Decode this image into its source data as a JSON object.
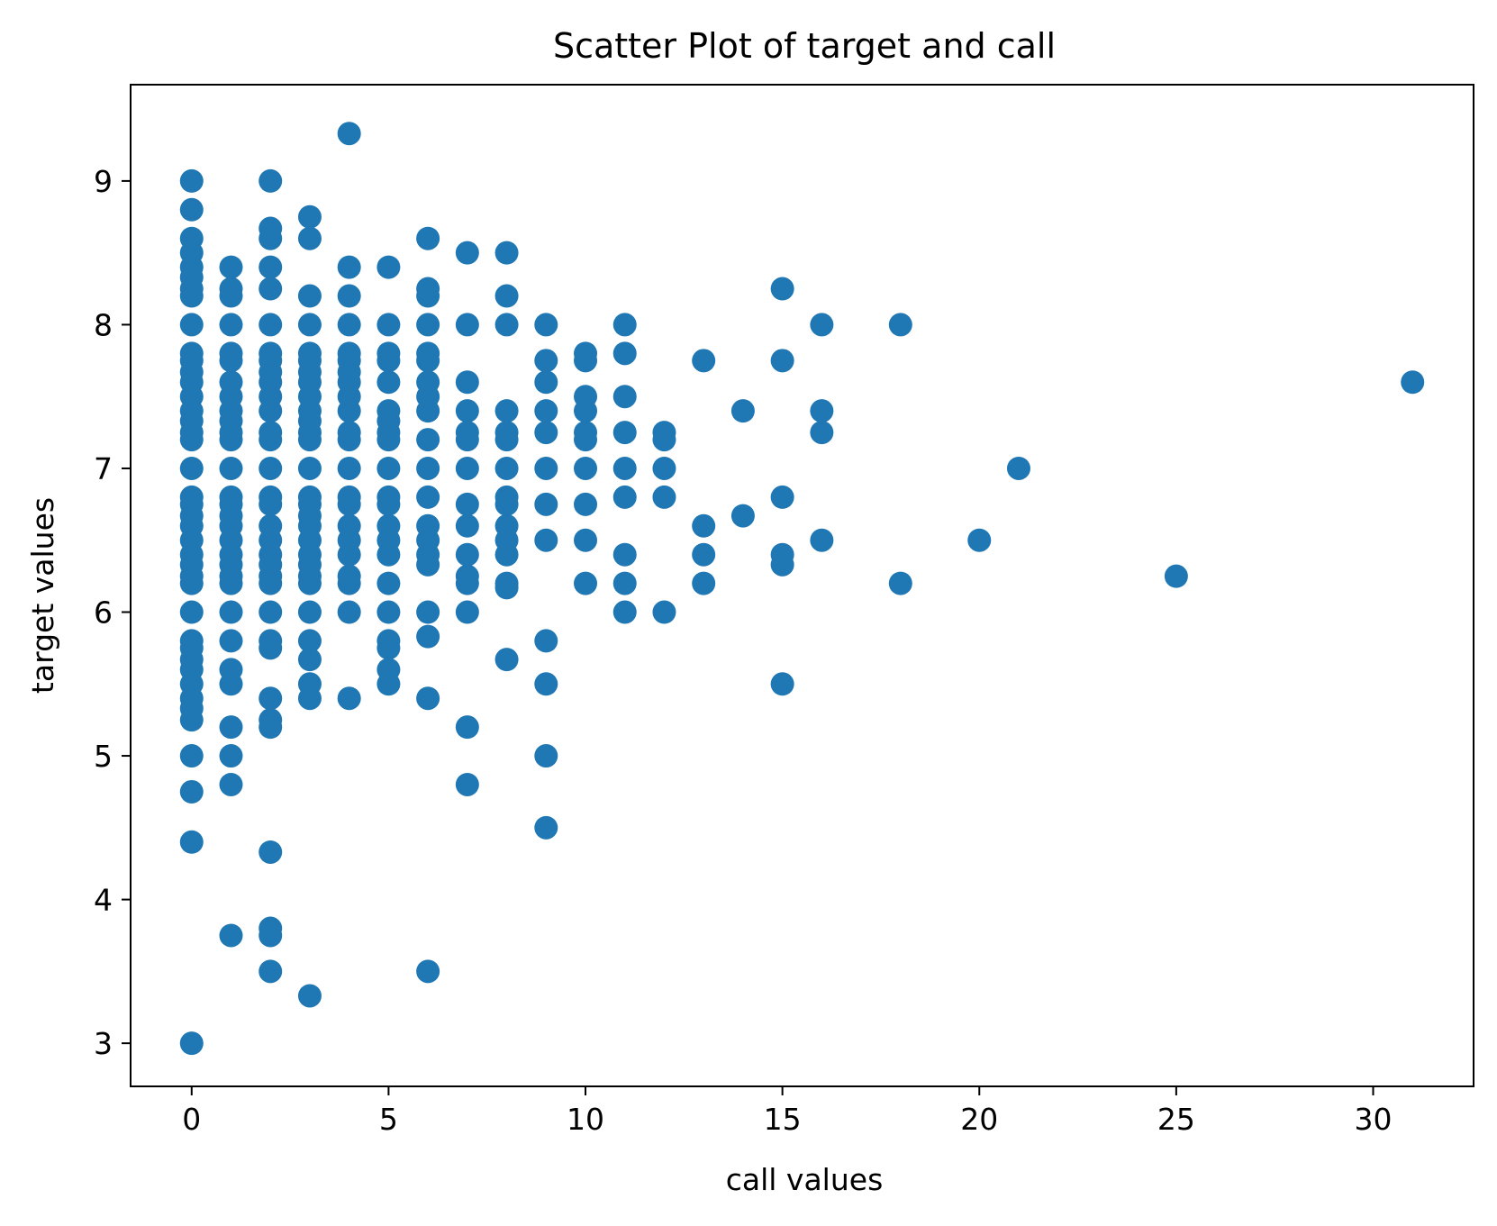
{
  "chart_data": {
    "type": "scatter",
    "title": "Scatter Plot of target and call",
    "xlabel": "call values",
    "ylabel": "target values",
    "xlim": [
      -1.55,
      32.55
    ],
    "ylim": [
      2.7,
      9.67
    ],
    "xticks": [
      0,
      5,
      10,
      15,
      20,
      25,
      30
    ],
    "yticks": [
      3,
      4,
      5,
      6,
      7,
      8,
      9
    ],
    "grid": false,
    "marker_color": "#1f77b4",
    "points": [
      [
        0,
        3.0
      ],
      [
        0,
        4.4
      ],
      [
        0,
        4.75
      ],
      [
        0,
        5.0
      ],
      [
        0,
        5.25
      ],
      [
        0,
        5.33
      ],
      [
        0,
        5.4
      ],
      [
        0,
        5.5
      ],
      [
        0,
        5.6
      ],
      [
        0,
        5.67
      ],
      [
        0,
        5.75
      ],
      [
        0,
        5.8
      ],
      [
        0,
        6.0
      ],
      [
        0,
        6.2
      ],
      [
        0,
        6.25
      ],
      [
        0,
        6.33
      ],
      [
        0,
        6.4
      ],
      [
        0,
        6.5
      ],
      [
        0,
        6.6
      ],
      [
        0,
        6.67
      ],
      [
        0,
        6.75
      ],
      [
        0,
        6.8
      ],
      [
        0,
        7.0
      ],
      [
        0,
        7.2
      ],
      [
        0,
        7.25
      ],
      [
        0,
        7.33
      ],
      [
        0,
        7.4
      ],
      [
        0,
        7.5
      ],
      [
        0,
        7.6
      ],
      [
        0,
        7.67
      ],
      [
        0,
        7.75
      ],
      [
        0,
        7.8
      ],
      [
        0,
        8.0
      ],
      [
        0,
        8.2
      ],
      [
        0,
        8.25
      ],
      [
        0,
        8.33
      ],
      [
        0,
        8.4
      ],
      [
        0,
        8.5
      ],
      [
        0,
        8.6
      ],
      [
        0,
        8.8
      ],
      [
        0,
        9.0
      ],
      [
        1,
        3.75
      ],
      [
        1,
        4.8
      ],
      [
        1,
        5.0
      ],
      [
        1,
        5.2
      ],
      [
        1,
        5.5
      ],
      [
        1,
        5.6
      ],
      [
        1,
        5.8
      ],
      [
        1,
        6.0
      ],
      [
        1,
        6.2
      ],
      [
        1,
        6.25
      ],
      [
        1,
        6.33
      ],
      [
        1,
        6.4
      ],
      [
        1,
        6.5
      ],
      [
        1,
        6.6
      ],
      [
        1,
        6.67
      ],
      [
        1,
        6.75
      ],
      [
        1,
        6.8
      ],
      [
        1,
        7.0
      ],
      [
        1,
        7.2
      ],
      [
        1,
        7.25
      ],
      [
        1,
        7.33
      ],
      [
        1,
        7.4
      ],
      [
        1,
        7.5
      ],
      [
        1,
        7.6
      ],
      [
        1,
        7.75
      ],
      [
        1,
        7.8
      ],
      [
        1,
        8.0
      ],
      [
        1,
        8.2
      ],
      [
        1,
        8.25
      ],
      [
        1,
        8.4
      ],
      [
        2,
        3.5
      ],
      [
        2,
        3.75
      ],
      [
        2,
        3.8
      ],
      [
        2,
        4.33
      ],
      [
        2,
        5.2
      ],
      [
        2,
        5.25
      ],
      [
        2,
        5.4
      ],
      [
        2,
        5.75
      ],
      [
        2,
        5.8
      ],
      [
        2,
        6.0
      ],
      [
        2,
        6.2
      ],
      [
        2,
        6.25
      ],
      [
        2,
        6.33
      ],
      [
        2,
        6.4
      ],
      [
        2,
        6.5
      ],
      [
        2,
        6.6
      ],
      [
        2,
        6.75
      ],
      [
        2,
        6.8
      ],
      [
        2,
        7.0
      ],
      [
        2,
        7.2
      ],
      [
        2,
        7.25
      ],
      [
        2,
        7.4
      ],
      [
        2,
        7.5
      ],
      [
        2,
        7.6
      ],
      [
        2,
        7.67
      ],
      [
        2,
        7.75
      ],
      [
        2,
        7.8
      ],
      [
        2,
        8.0
      ],
      [
        2,
        8.25
      ],
      [
        2,
        8.4
      ],
      [
        2,
        8.6
      ],
      [
        2,
        8.67
      ],
      [
        2,
        9.0
      ],
      [
        3,
        3.33
      ],
      [
        3,
        5.4
      ],
      [
        3,
        5.5
      ],
      [
        3,
        5.67
      ],
      [
        3,
        5.8
      ],
      [
        3,
        6.0
      ],
      [
        3,
        6.2
      ],
      [
        3,
        6.25
      ],
      [
        3,
        6.33
      ],
      [
        3,
        6.4
      ],
      [
        3,
        6.5
      ],
      [
        3,
        6.6
      ],
      [
        3,
        6.67
      ],
      [
        3,
        6.75
      ],
      [
        3,
        6.8
      ],
      [
        3,
        7.0
      ],
      [
        3,
        7.2
      ],
      [
        3,
        7.25
      ],
      [
        3,
        7.33
      ],
      [
        3,
        7.4
      ],
      [
        3,
        7.5
      ],
      [
        3,
        7.6
      ],
      [
        3,
        7.67
      ],
      [
        3,
        7.75
      ],
      [
        3,
        7.8
      ],
      [
        3,
        8.0
      ],
      [
        3,
        8.2
      ],
      [
        3,
        8.6
      ],
      [
        3,
        8.75
      ],
      [
        4,
        5.4
      ],
      [
        4,
        6.0
      ],
      [
        4,
        6.2
      ],
      [
        4,
        6.25
      ],
      [
        4,
        6.4
      ],
      [
        4,
        6.5
      ],
      [
        4,
        6.6
      ],
      [
        4,
        6.75
      ],
      [
        4,
        6.8
      ],
      [
        4,
        7.0
      ],
      [
        4,
        7.2
      ],
      [
        4,
        7.25
      ],
      [
        4,
        7.4
      ],
      [
        4,
        7.5
      ],
      [
        4,
        7.6
      ],
      [
        4,
        7.67
      ],
      [
        4,
        7.75
      ],
      [
        4,
        7.8
      ],
      [
        4,
        8.0
      ],
      [
        4,
        8.2
      ],
      [
        4,
        8.4
      ],
      [
        4,
        9.33
      ],
      [
        5,
        5.5
      ],
      [
        5,
        5.6
      ],
      [
        5,
        5.75
      ],
      [
        5,
        5.8
      ],
      [
        5,
        6.0
      ],
      [
        5,
        6.2
      ],
      [
        5,
        6.4
      ],
      [
        5,
        6.5
      ],
      [
        5,
        6.6
      ],
      [
        5,
        6.75
      ],
      [
        5,
        6.8
      ],
      [
        5,
        7.0
      ],
      [
        5,
        7.2
      ],
      [
        5,
        7.25
      ],
      [
        5,
        7.33
      ],
      [
        5,
        7.4
      ],
      [
        5,
        7.6
      ],
      [
        5,
        7.75
      ],
      [
        5,
        7.8
      ],
      [
        5,
        8.0
      ],
      [
        5,
        8.4
      ],
      [
        6,
        3.5
      ],
      [
        6,
        5.4
      ],
      [
        6,
        5.83
      ],
      [
        6,
        6.0
      ],
      [
        6,
        6.33
      ],
      [
        6,
        6.4
      ],
      [
        6,
        6.5
      ],
      [
        6,
        6.6
      ],
      [
        6,
        6.8
      ],
      [
        6,
        7.0
      ],
      [
        6,
        7.2
      ],
      [
        6,
        7.4
      ],
      [
        6,
        7.5
      ],
      [
        6,
        7.6
      ],
      [
        6,
        7.75
      ],
      [
        6,
        7.8
      ],
      [
        6,
        8.0
      ],
      [
        6,
        8.2
      ],
      [
        6,
        8.25
      ],
      [
        6,
        8.6
      ],
      [
        7,
        4.8
      ],
      [
        7,
        5.2
      ],
      [
        7,
        6.0
      ],
      [
        7,
        6.2
      ],
      [
        7,
        6.25
      ],
      [
        7,
        6.4
      ],
      [
        7,
        6.6
      ],
      [
        7,
        6.75
      ],
      [
        7,
        7.0
      ],
      [
        7,
        7.2
      ],
      [
        7,
        7.25
      ],
      [
        7,
        7.4
      ],
      [
        7,
        7.6
      ],
      [
        7,
        8.0
      ],
      [
        7,
        8.5
      ],
      [
        8,
        5.67
      ],
      [
        8,
        6.17
      ],
      [
        8,
        6.2
      ],
      [
        8,
        6.4
      ],
      [
        8,
        6.5
      ],
      [
        8,
        6.6
      ],
      [
        8,
        6.75
      ],
      [
        8,
        6.8
      ],
      [
        8,
        7.0
      ],
      [
        8,
        7.2
      ],
      [
        8,
        7.25
      ],
      [
        8,
        7.4
      ],
      [
        8,
        8.0
      ],
      [
        8,
        8.2
      ],
      [
        8,
        8.5
      ],
      [
        9,
        4.5
      ],
      [
        9,
        5.0
      ],
      [
        9,
        5.5
      ],
      [
        9,
        5.8
      ],
      [
        9,
        6.5
      ],
      [
        9,
        6.75
      ],
      [
        9,
        7.0
      ],
      [
        9,
        7.25
      ],
      [
        9,
        7.4
      ],
      [
        9,
        7.6
      ],
      [
        9,
        7.75
      ],
      [
        9,
        8.0
      ],
      [
        10,
        6.2
      ],
      [
        10,
        6.5
      ],
      [
        10,
        6.75
      ],
      [
        10,
        7.0
      ],
      [
        10,
        7.2
      ],
      [
        10,
        7.25
      ],
      [
        10,
        7.4
      ],
      [
        10,
        7.5
      ],
      [
        10,
        7.75
      ],
      [
        10,
        7.8
      ],
      [
        11,
        6.0
      ],
      [
        11,
        6.2
      ],
      [
        11,
        6.4
      ],
      [
        11,
        6.8
      ],
      [
        11,
        7.0
      ],
      [
        11,
        7.25
      ],
      [
        11,
        7.5
      ],
      [
        11,
        7.8
      ],
      [
        11,
        8.0
      ],
      [
        12,
        6.0
      ],
      [
        12,
        6.8
      ],
      [
        12,
        7.0
      ],
      [
        12,
        7.2
      ],
      [
        12,
        7.25
      ],
      [
        13,
        6.2
      ],
      [
        13,
        6.4
      ],
      [
        13,
        6.6
      ],
      [
        13,
        7.75
      ],
      [
        14,
        6.67
      ],
      [
        14,
        7.4
      ],
      [
        15,
        5.5
      ],
      [
        15,
        6.33
      ],
      [
        15,
        6.4
      ],
      [
        15,
        6.8
      ],
      [
        15,
        7.75
      ],
      [
        15,
        8.25
      ],
      [
        16,
        6.5
      ],
      [
        16,
        7.25
      ],
      [
        16,
        7.4
      ],
      [
        16,
        8.0
      ],
      [
        18,
        6.2
      ],
      [
        18,
        8.0
      ],
      [
        20,
        6.5
      ],
      [
        21,
        7.0
      ],
      [
        25,
        6.25
      ],
      [
        31,
        7.6
      ]
    ]
  }
}
